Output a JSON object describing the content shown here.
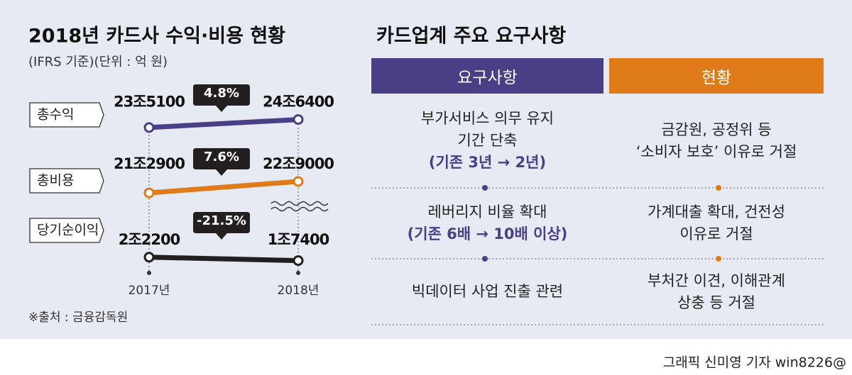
{
  "chart_data": {
    "type": "slope",
    "title": "2018년 카드사 수익·비용 현황",
    "subtitle": "(IFRS 기준)(단위 : 억 원)",
    "source": "※출처 : 금융감독원",
    "categories": [
      "2017년",
      "2018년"
    ],
    "series": [
      {
        "name": "총수익",
        "color": "#4a3f86",
        "values": [
          235100,
          246400
        ],
        "value_labels": [
          "23조5100",
          "24조6400"
        ],
        "change_label": "4.8%",
        "ylim": [
          220000,
          265000
        ]
      },
      {
        "name": "총비용",
        "color": "#e07b1a",
        "values": [
          212900,
          229000
        ],
        "value_labels": [
          "21조2900",
          "22조9000"
        ],
        "change_label": "7.6%",
        "ylim": [
          200000,
          245000
        ]
      },
      {
        "name": "당기순이익",
        "color": "#231f20",
        "values": [
          22200,
          17400
        ],
        "value_labels": [
          "2조2200",
          "1조7400"
        ],
        "change_label": "-21.5%",
        "ylim": [
          10000,
          55000
        ]
      }
    ]
  },
  "table": {
    "title": "카드업계 주요 요구사항",
    "header": [
      "요구사항",
      "현황"
    ],
    "rows": [
      {
        "request": [
          "부가서비스 의무 유지",
          "기간 단축"
        ],
        "request_note": "(기존 3년 → 2년)",
        "status": [
          "금감원, 공정위 등",
          "‘소비자 보호’ 이유로 거절"
        ]
      },
      {
        "request": [
          "레버리지 비율 확대"
        ],
        "request_note": "(기존 6배 → 10배 이상)",
        "status": [
          "가계대출 확대, 건전성",
          "이유로 거절"
        ]
      },
      {
        "request": [
          "빅데이터 사업 진출 관련"
        ],
        "status": [
          "부처간 이견, 이해관계",
          "상충 등 거절"
        ]
      }
    ]
  },
  "credit": "그래픽 신미영 기자 win8226@"
}
